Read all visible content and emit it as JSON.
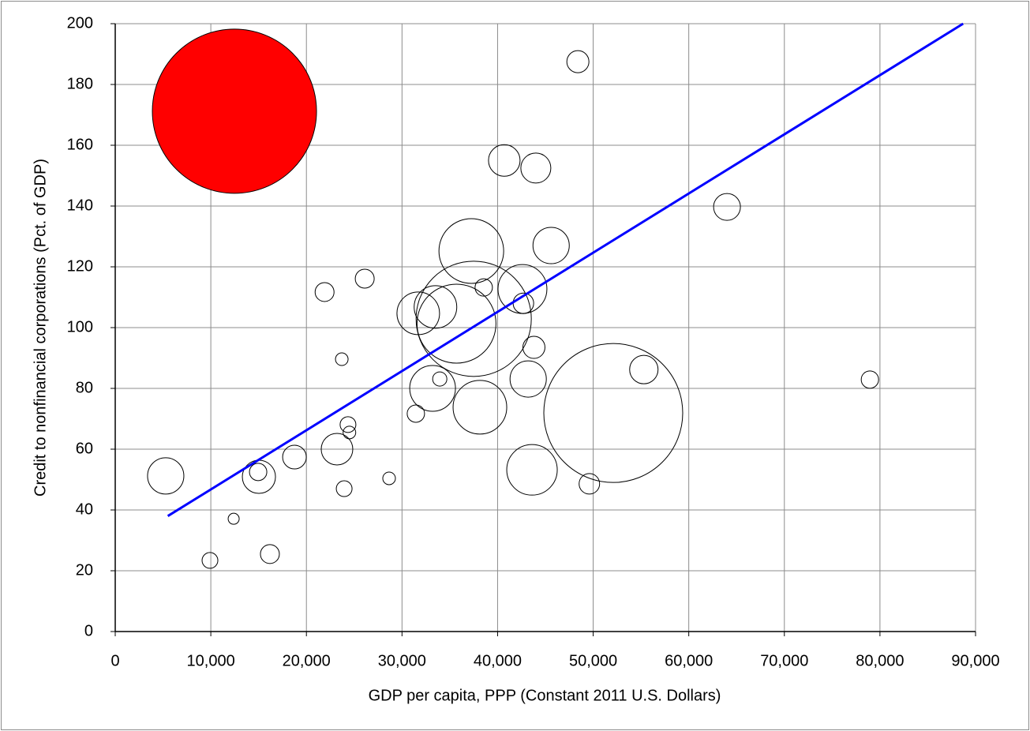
{
  "chart_data": {
    "type": "scatter",
    "xlabel": "GDP per capita, PPP (Constant 2011 U.S. Dollars)",
    "ylabel": "Credit to nonfinancial corporations (Pct. of GDP)",
    "xlim": [
      0,
      90000
    ],
    "ylim": [
      0,
      200
    ],
    "xticks": [
      0,
      {
        "value": 10000,
        "label": "10,000"
      },
      {
        "value": 20000,
        "label": "20,000"
      },
      {
        "value": 30000,
        "label": "30,000"
      },
      {
        "value": 40000,
        "label": "40,000"
      },
      {
        "value": 50000,
        "label": "50,000"
      },
      {
        "value": 60000,
        "label": "60,000"
      },
      {
        "value": 70000,
        "label": "70,000"
      },
      {
        "value": 80000,
        "label": "80,000"
      },
      {
        "value": 90000,
        "label": "90,000"
      }
    ],
    "yticks": [
      0,
      20,
      40,
      60,
      80,
      100,
      120,
      140,
      160,
      180,
      200
    ],
    "grid": true,
    "series": [
      {
        "fill": "#ff0000",
        "edgecolor": "#000000",
        "x": [
          12470
        ],
        "values": [
          171.2
        ],
        "sizes": [
          10816
        ]
      },
      {
        "fill": "none",
        "edgecolor": "#000000",
        "x": [
          48400,
          40700,
          44000,
          64000,
          37250,
          45600,
          26100,
          21900,
          38550,
          42600,
          42700,
          31700,
          33500,
          37500,
          35700,
          43800,
          23700,
          33200,
          33950,
          43200,
          55300,
          78950,
          52100,
          38150,
          31450,
          24350,
          24500,
          23200,
          18750,
          5280,
          15030,
          14950,
          28650,
          23950,
          49600,
          43600,
          12390,
          16180,
          9910
        ],
        "values": [
          187.5,
          155,
          152.5,
          139.7,
          125.2,
          127,
          116.1,
          111.7,
          113.2,
          112.7,
          108,
          104.7,
          106.8,
          102.9,
          101.3,
          93.5,
          89.6,
          80,
          83.1,
          83.1,
          86.2,
          82.9,
          71.9,
          73.8,
          71.7,
          68.1,
          65.5,
          60,
          57.4,
          51.2,
          50.9,
          52.5,
          50.4,
          47,
          48.6,
          53.2,
          37.1,
          25.5,
          23.4
        ],
        "sizes": [
          196,
          400,
          361,
          289,
          1681,
          529,
          144,
          144,
          121,
          961,
          169,
          729,
          729,
          5329,
          2500,
          196,
          64,
          841,
          81,
          529,
          324,
          121,
          7744,
          1156,
          121,
          100,
          64,
          400,
          225,
          529,
          441,
          121,
          64,
          100,
          169,
          1024,
          49,
          144,
          100
        ]
      }
    ],
    "trendline": {
      "color": "#0000ff",
      "x": [
        5500,
        88700
      ],
      "values": [
        38,
        200
      ]
    }
  }
}
